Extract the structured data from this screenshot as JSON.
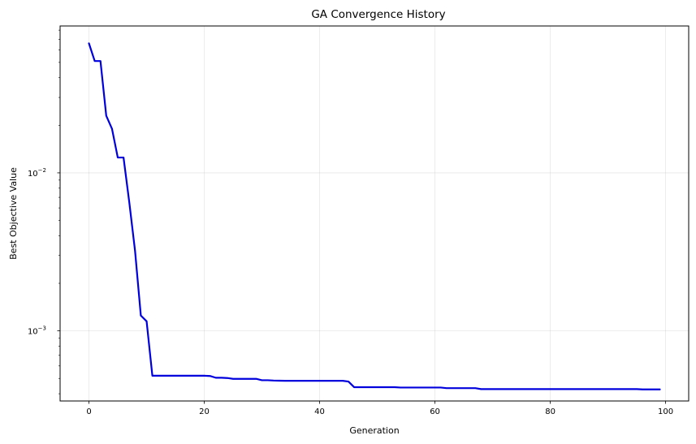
{
  "chart_data": {
    "type": "line",
    "title": "GA Convergence History",
    "xlabel": "Generation",
    "ylabel": "Best Objective Value",
    "xlim": [
      -5,
      104
    ],
    "ylim": [
      0.00036,
      0.085
    ],
    "y_scale": "log",
    "grid": true,
    "x_ticks": [
      0,
      20,
      40,
      60,
      80,
      100
    ],
    "x_tick_labels": [
      "0",
      "20",
      "40",
      "60",
      "80",
      "100"
    ],
    "y_ticks": [
      0.001,
      0.01
    ],
    "y_tick_labels_base": [
      "10",
      "10"
    ],
    "y_tick_labels_exp": [
      "−3",
      "−2"
    ],
    "series": [
      {
        "color": "#0000dd",
        "x": [
          0,
          1,
          2,
          3,
          4,
          5,
          6,
          7,
          8,
          9,
          10,
          11,
          12,
          13,
          14,
          15,
          16,
          17,
          18,
          19,
          20,
          21,
          22,
          23,
          24,
          25,
          26,
          27,
          28,
          29,
          30,
          31,
          32,
          33,
          34,
          35,
          36,
          37,
          38,
          39,
          40,
          41,
          42,
          43,
          44,
          45,
          46,
          47,
          48,
          49,
          50,
          51,
          52,
          53,
          54,
          55,
          56,
          57,
          58,
          59,
          60,
          61,
          62,
          63,
          64,
          65,
          66,
          67,
          68,
          69,
          70,
          71,
          72,
          73,
          74,
          75,
          76,
          77,
          78,
          79,
          80,
          81,
          82,
          83,
          84,
          85,
          86,
          87,
          88,
          89,
          90,
          91,
          92,
          93,
          94,
          95,
          96,
          97,
          98,
          99
        ],
        "y": [
          0.066,
          0.051,
          0.051,
          0.023,
          0.019,
          0.0125,
          0.0125,
          0.0065,
          0.0032,
          0.00125,
          0.00115,
          0.00052,
          0.00052,
          0.00052,
          0.00052,
          0.00052,
          0.00052,
          0.00052,
          0.00052,
          0.00052,
          0.00052,
          0.000518,
          0.000505,
          0.000505,
          0.000503,
          0.000497,
          0.000497,
          0.000497,
          0.000497,
          0.000497,
          0.000487,
          0.000487,
          0.000485,
          0.000484,
          0.000483,
          0.000483,
          0.000483,
          0.000483,
          0.000483,
          0.000483,
          0.000483,
          0.000483,
          0.000483,
          0.000483,
          0.000483,
          0.000478,
          0.00044,
          0.00044,
          0.00044,
          0.00044,
          0.00044,
          0.00044,
          0.00044,
          0.00044,
          0.000438,
          0.000438,
          0.000438,
          0.000438,
          0.000438,
          0.000438,
          0.000438,
          0.000438,
          0.000434,
          0.000434,
          0.000434,
          0.000434,
          0.000434,
          0.000434,
          0.000428,
          0.000428,
          0.000428,
          0.000428,
          0.000428,
          0.000428,
          0.000428,
          0.000428,
          0.000428,
          0.000428,
          0.000428,
          0.000428,
          0.000428,
          0.000428,
          0.000428,
          0.000428,
          0.000428,
          0.000428,
          0.000428,
          0.000428,
          0.000428,
          0.000428,
          0.000428,
          0.000428,
          0.000428,
          0.000428,
          0.000428,
          0.000428,
          0.000426,
          0.000426,
          0.000426,
          0.000426
        ]
      }
    ]
  }
}
